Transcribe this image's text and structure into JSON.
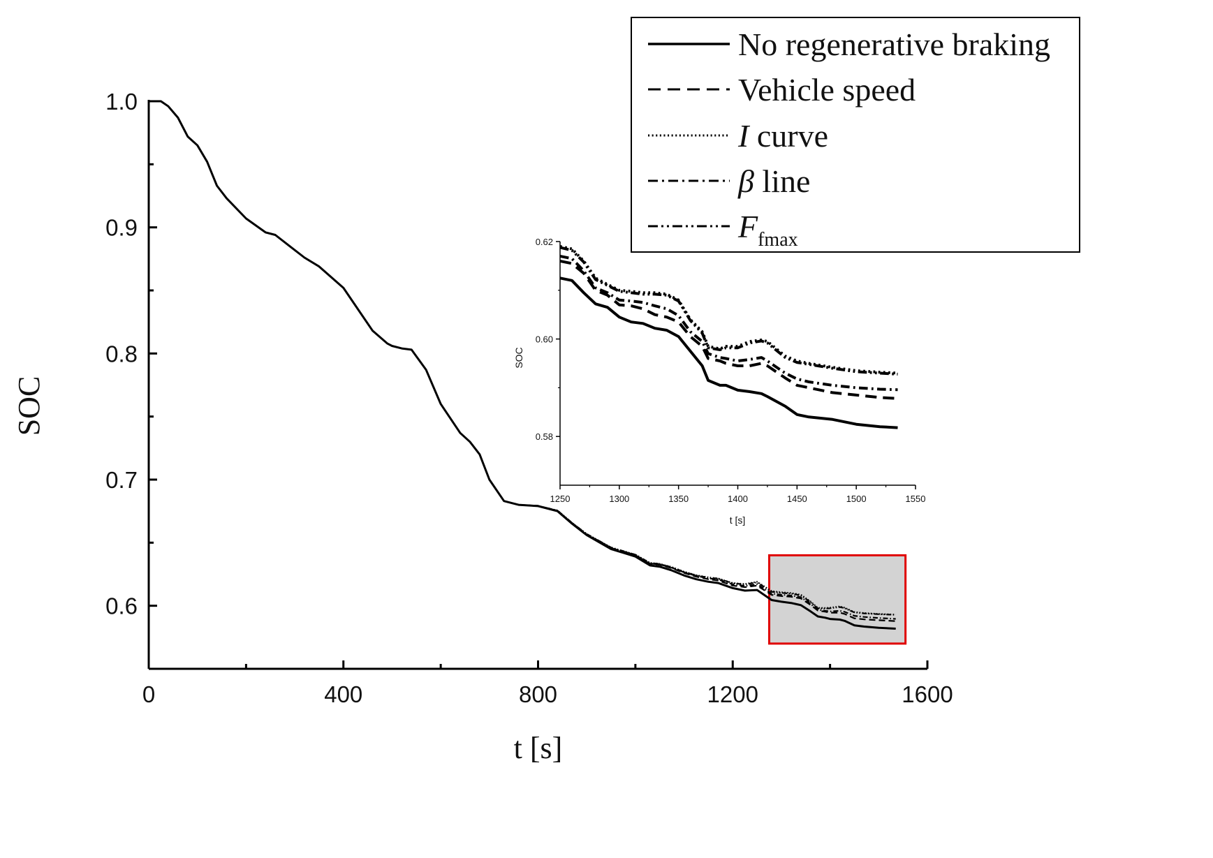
{
  "chart_data": [
    {
      "type": "line",
      "panel": "main",
      "xlabel": "t [s]",
      "ylabel": "SOC",
      "xlim": [
        0,
        1600
      ],
      "ylim": [
        0.55,
        1.0
      ],
      "xticks": [
        0,
        400,
        800,
        1200,
        1600
      ],
      "xtick_labels": [
        "0",
        "400",
        "800",
        "1200",
        "1600"
      ],
      "yticks": [
        0.6,
        0.7,
        0.8,
        0.9,
        1.0
      ],
      "ytick_labels": [
        "0.6",
        "0.7",
        "0.8",
        "0.9",
        "1.0"
      ],
      "legend": {
        "placement": "top-right",
        "entries": [
          {
            "pre": "No regenerative braking",
            "italic": "",
            "post": "",
            "sub": ""
          },
          {
            "pre": "Vehicle speed",
            "italic": "",
            "post": "",
            "sub": ""
          },
          {
            "pre": "",
            "italic": "I",
            "post": " curve",
            "sub": ""
          },
          {
            "pre": "",
            "italic": "β",
            "post": " line",
            "sub": ""
          },
          {
            "pre": "",
            "italic": "F",
            "post": "",
            "sub": "fmax"
          }
        ]
      },
      "highlight_region": {
        "x": [
          1275,
          1555
        ],
        "y": [
          0.57,
          0.64
        ],
        "stroke": "#e00000",
        "fill": "#d3d3d3"
      },
      "series": [
        {
          "name": "No regenerative braking",
          "x": [
            0,
            25,
            40,
            60,
            80,
            100,
            120,
            140,
            160,
            200,
            240,
            260,
            290,
            320,
            350,
            400,
            430,
            460,
            490,
            500,
            520,
            540,
            555,
            570,
            600,
            640,
            660,
            680,
            700,
            730,
            750,
            760,
            800,
            840,
            870,
            900,
            950,
            1000,
            1030,
            1050,
            1075,
            1100,
            1125,
            1150,
            1170,
            1200,
            1225,
            1250,
            1280,
            1300,
            1320,
            1340,
            1360,
            1375,
            1390,
            1400,
            1420,
            1430,
            1450,
            1470,
            1500,
            1535
          ],
          "y": [
            1.0,
            1.0,
            0.996,
            0.987,
            0.972,
            0.965,
            0.952,
            0.933,
            0.923,
            0.907,
            0.896,
            0.894,
            0.885,
            0.876,
            0.869,
            0.852,
            0.835,
            0.818,
            0.808,
            0.806,
            0.804,
            0.803,
            0.795,
            0.787,
            0.76,
            0.737,
            0.73,
            0.72,
            0.7,
            0.683,
            0.681,
            0.68,
            0.679,
            0.675,
            0.665,
            0.656,
            0.645,
            0.639,
            0.632,
            0.631,
            0.628,
            0.624,
            0.621,
            0.619,
            0.618,
            0.614,
            0.612,
            0.6125,
            0.6045,
            0.6032,
            0.6022,
            0.6005,
            0.5955,
            0.5915,
            0.5905,
            0.5895,
            0.589,
            0.588,
            0.5845,
            0.5835,
            0.5825,
            0.5818
          ],
          "dash": "solid"
        },
        {
          "name": "Vehicle speed",
          "dash": "dashed",
          "offset_from": "No regenerative braking",
          "offset_points": [
            [
              0,
              0
            ],
            [
              760,
              0
            ],
            [
              1000,
              0.001
            ],
            [
              1100,
              0.002
            ],
            [
              1200,
              0.002
            ],
            [
              1250,
              0.0035
            ],
            [
              1300,
              0.0045
            ],
            [
              1350,
              0.0055
            ],
            [
              1380,
              0.0045
            ],
            [
              1400,
              0.005
            ],
            [
              1420,
              0.0055
            ],
            [
              1450,
              0.0055
            ],
            [
              1500,
              0.006
            ],
            [
              1535,
              0.006
            ]
          ]
        },
        {
          "name": "I curve",
          "dash": "dotted",
          "offset_from": "No regenerative braking",
          "offset_points": [
            [
              0,
              0
            ],
            [
              760,
              0
            ],
            [
              1000,
              0.0015
            ],
            [
              1100,
              0.003
            ],
            [
              1200,
              0.004
            ],
            [
              1250,
              0.0065
            ],
            [
              1300,
              0.0075
            ],
            [
              1350,
              0.0085
            ],
            [
              1380,
              0.0065
            ],
            [
              1400,
              0.009
            ],
            [
              1420,
              0.0105
            ],
            [
              1450,
              0.0105
            ],
            [
              1500,
              0.011
            ],
            [
              1535,
              0.0112
            ]
          ]
        },
        {
          "name": "β line",
          "dash": "dashdot",
          "offset_from": "No regenerative braking",
          "offset_points": [
            [
              0,
              0
            ],
            [
              760,
              0
            ],
            [
              1000,
              0.001
            ],
            [
              1100,
              0.0025
            ],
            [
              1200,
              0.003
            ],
            [
              1250,
              0.0045
            ],
            [
              1300,
              0.0055
            ],
            [
              1350,
              0.0065
            ],
            [
              1380,
              0.005
            ],
            [
              1400,
              0.006
            ],
            [
              1420,
              0.007
            ],
            [
              1450,
              0.0075
            ],
            [
              1500,
              0.0078
            ],
            [
              1535,
              0.0078
            ]
          ]
        },
        {
          "name": "Ffmax",
          "dash": "dashdotdot",
          "offset_from": "No regenerative braking",
          "offset_points": [
            [
              0,
              0
            ],
            [
              760,
              0
            ],
            [
              1000,
              0.0015
            ],
            [
              1100,
              0.0028
            ],
            [
              1200,
              0.0038
            ],
            [
              1250,
              0.006
            ],
            [
              1300,
              0.007
            ],
            [
              1350,
              0.008
            ],
            [
              1380,
              0.006
            ],
            [
              1400,
              0.0085
            ],
            [
              1420,
              0.01
            ],
            [
              1450,
              0.0102
            ],
            [
              1500,
              0.0108
            ],
            [
              1535,
              0.011
            ]
          ]
        }
      ]
    },
    {
      "type": "line",
      "panel": "inset",
      "xlabel": "t [s]",
      "ylabel": "SOC",
      "xlim": [
        1250,
        1550
      ],
      "ylim": [
        0.57,
        0.62
      ],
      "xticks": [
        1250,
        1300,
        1350,
        1400,
        1450,
        1500,
        1550
      ],
      "xtick_labels": [
        "1250",
        "1300",
        "1350",
        "1400",
        "1450",
        "1500",
        "1550"
      ],
      "yticks": [
        0.58,
        0.6,
        0.62
      ],
      "ytick_labels": [
        "0.58",
        "0.60",
        "0.62"
      ],
      "series": [
        {
          "name": "No regenerative braking",
          "dash": "solid",
          "x": [
            1250,
            1260,
            1270,
            1280,
            1290,
            1300,
            1310,
            1320,
            1330,
            1340,
            1350,
            1360,
            1370,
            1375,
            1385,
            1390,
            1400,
            1410,
            1420,
            1425,
            1440,
            1450,
            1460,
            1480,
            1500,
            1520,
            1535
          ],
          "y": [
            0.6125,
            0.612,
            0.6095,
            0.6072,
            0.6065,
            0.6045,
            0.6035,
            0.6032,
            0.6022,
            0.6018,
            0.6005,
            0.5975,
            0.5945,
            0.5915,
            0.5905,
            0.5905,
            0.5895,
            0.5892,
            0.5888,
            0.5882,
            0.5862,
            0.5845,
            0.584,
            0.5835,
            0.5825,
            0.582,
            0.5818
          ]
        },
        {
          "name": "Vehicle speed",
          "dash": "dashed",
          "x": [
            1250,
            1260,
            1270,
            1280,
            1290,
            1300,
            1310,
            1320,
            1330,
            1340,
            1350,
            1360,
            1370,
            1375,
            1385,
            1390,
            1400,
            1410,
            1420,
            1425,
            1440,
            1450,
            1460,
            1480,
            1500,
            1520,
            1535
          ],
          "y": [
            0.616,
            0.6155,
            0.6135,
            0.61,
            0.609,
            0.607,
            0.6068,
            0.6062,
            0.605,
            0.6045,
            0.6035,
            0.6005,
            0.5985,
            0.596,
            0.5955,
            0.595,
            0.5945,
            0.5945,
            0.595,
            0.5945,
            0.592,
            0.5905,
            0.59,
            0.589,
            0.5885,
            0.588,
            0.5878
          ]
        },
        {
          "name": "I curve",
          "dash": "dotted",
          "x": [
            1250,
            1260,
            1270,
            1280,
            1290,
            1300,
            1310,
            1320,
            1330,
            1340,
            1350,
            1360,
            1370,
            1375,
            1385,
            1390,
            1400,
            1410,
            1420,
            1425,
            1440,
            1450,
            1460,
            1480,
            1500,
            1520,
            1535
          ],
          "y": [
            0.619,
            0.6185,
            0.616,
            0.6125,
            0.6112,
            0.61,
            0.6098,
            0.6095,
            0.6095,
            0.6092,
            0.608,
            0.604,
            0.6015,
            0.5985,
            0.598,
            0.5985,
            0.5985,
            0.5995,
            0.5998,
            0.5995,
            0.5965,
            0.5955,
            0.595,
            0.5942,
            0.5935,
            0.5932,
            0.593
          ]
        },
        {
          "name": "β line",
          "dash": "dashdot",
          "x": [
            1250,
            1260,
            1270,
            1280,
            1290,
            1300,
            1310,
            1320,
            1330,
            1340,
            1350,
            1360,
            1370,
            1375,
            1385,
            1390,
            1400,
            1410,
            1420,
            1425,
            1440,
            1450,
            1460,
            1480,
            1500,
            1520,
            1535
          ],
          "y": [
            0.617,
            0.6165,
            0.614,
            0.6105,
            0.6095,
            0.608,
            0.6078,
            0.6075,
            0.6068,
            0.6062,
            0.6048,
            0.6015,
            0.5995,
            0.597,
            0.5962,
            0.596,
            0.5955,
            0.5958,
            0.5962,
            0.5955,
            0.593,
            0.5918,
            0.5912,
            0.5905,
            0.59,
            0.5897,
            0.5896
          ]
        },
        {
          "name": "Ffmax",
          "dash": "dashdotdot",
          "x": [
            1250,
            1260,
            1270,
            1280,
            1290,
            1300,
            1310,
            1320,
            1330,
            1340,
            1350,
            1360,
            1370,
            1375,
            1385,
            1390,
            1400,
            1410,
            1420,
            1425,
            1440,
            1450,
            1460,
            1480,
            1500,
            1520,
            1535
          ],
          "y": [
            0.6188,
            0.6182,
            0.6158,
            0.6122,
            0.611,
            0.6098,
            0.6095,
            0.6092,
            0.6092,
            0.609,
            0.6078,
            0.6038,
            0.6012,
            0.5982,
            0.5978,
            0.5982,
            0.5982,
            0.5992,
            0.5996,
            0.5992,
            0.5962,
            0.5952,
            0.5948,
            0.594,
            0.5933,
            0.593,
            0.5928
          ]
        }
      ]
    }
  ]
}
